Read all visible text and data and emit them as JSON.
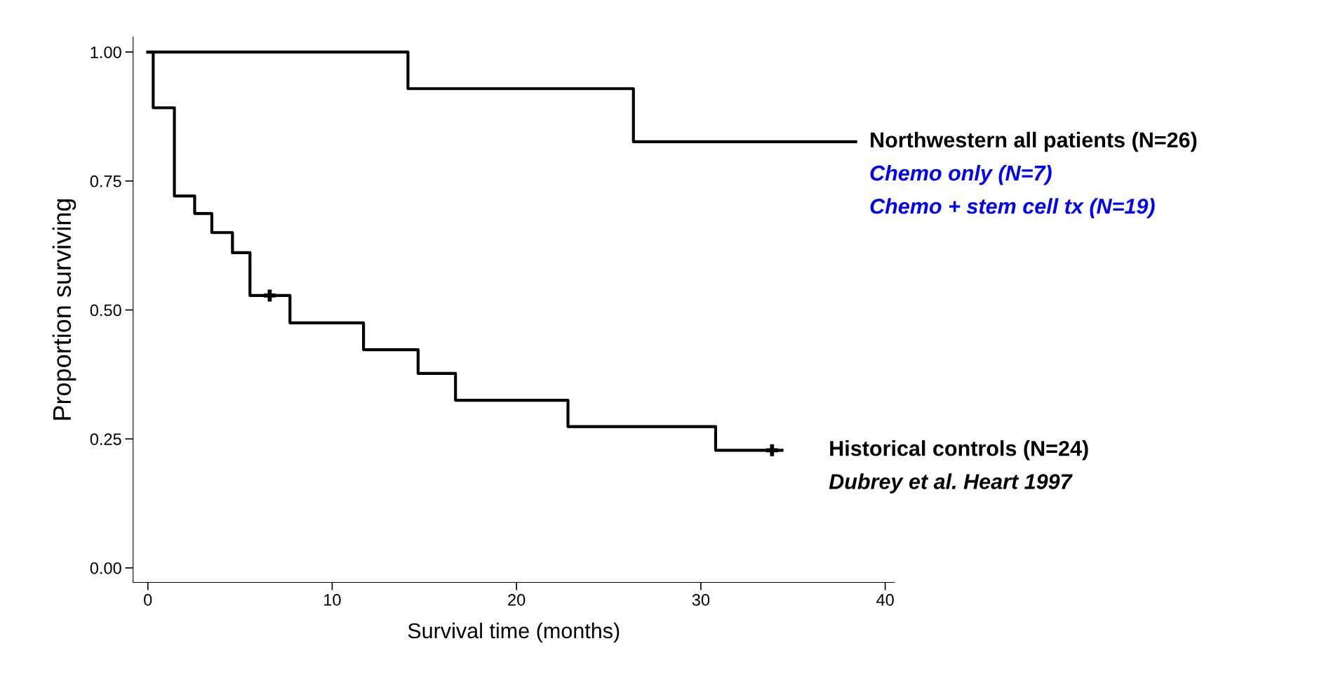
{
  "chart_data": {
    "type": "step",
    "xlabel": "Survival time (months)",
    "ylabel": "Proportion surviving",
    "xlim": [
      -0.8,
      40.5
    ],
    "ylim": [
      -0.028,
      1.029
    ],
    "xticks": [
      0,
      10,
      20,
      30,
      40
    ],
    "yticks": [
      {
        "value": 0,
        "label": "0.00"
      },
      {
        "value": 0.25,
        "label": "0.25"
      },
      {
        "value": 0.5,
        "label": "0.50"
      },
      {
        "value": 0.75,
        "label": "0.75"
      },
      {
        "value": 1,
        "label": "1.00"
      }
    ],
    "grid": false,
    "legend": false,
    "marker": "none",
    "line_style": "solid",
    "series": [
      {
        "name": "Northwestern all patients (N=26)",
        "color": "#000000",
        "x": [
          0,
          14.11,
          26.34,
          38.4
        ],
        "values": [
          1,
          0.929,
          0.826,
          0.826
        ]
      },
      {
        "name": "Historical controls (N=24)",
        "color": "#000000",
        "x": [
          0,
          0.29,
          1.44,
          2.54,
          3.47,
          4.59,
          5.54,
          7.71,
          11.7,
          14.66,
          16.69,
          22.79,
          30.8,
          34.4
        ],
        "values": [
          1,
          0.892,
          0.721,
          0.687,
          0.65,
          0.611,
          0.528,
          0.475,
          0.423,
          0.377,
          0.325,
          0.274,
          0.228,
          0.228
        ]
      },
      {
        "type": "scatter",
        "marker": "cross",
        "color": "#000000",
        "x": [
          6.61,
          33.86
        ],
        "values": [
          0.528,
          0.228
        ]
      }
    ],
    "annotations": [
      "Chemo only (N=7)",
      "Chemo + stem cell tx (N=19)",
      "Dubrey et al. Heart 1997"
    ]
  }
}
